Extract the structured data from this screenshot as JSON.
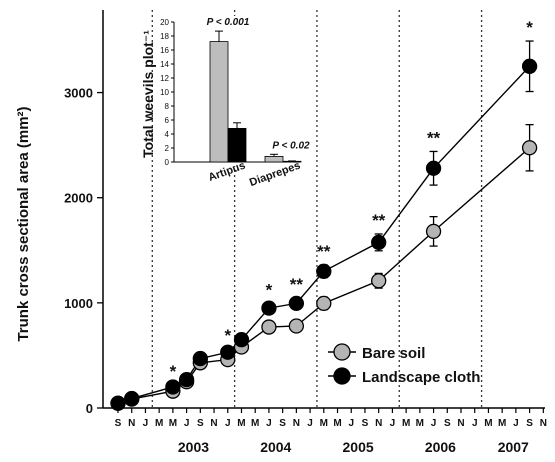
{
  "chart_data": [
    {
      "type": "line",
      "ylabel": "Trunk cross sectional area (mm²)",
      "xlabel": "",
      "ylim": [
        0,
        3500
      ],
      "y_ticks": [
        "0",
        "1000",
        "2000",
        "3000"
      ],
      "month_ticks": [
        "S",
        "N",
        "J",
        "M",
        "M",
        "J",
        "S",
        "N",
        "J",
        "M",
        "M",
        "J",
        "S",
        "N",
        "J",
        "M",
        "M",
        "J",
        "S",
        "N",
        "J",
        "M",
        "M",
        "J",
        "S",
        "N",
        "J",
        "M",
        "M",
        "J",
        "S",
        "N"
      ],
      "years": [
        "2003",
        "2004",
        "2005",
        "2006",
        "2007"
      ],
      "year_dividers_after_tick": [
        2,
        8,
        14,
        20,
        26
      ],
      "series": [
        {
          "name": "Bare soil",
          "color": "#b4b4b4",
          "points": [
            {
              "t": 0,
              "y": 45,
              "err": 0
            },
            {
              "t": 1,
              "y": 85,
              "err": 0
            },
            {
              "t": 4,
              "y": 160,
              "err": 20
            },
            {
              "t": 5,
              "y": 250,
              "err": 20
            },
            {
              "t": 6,
              "y": 430,
              "err": 25
            },
            {
              "t": 8,
              "y": 460,
              "err": 30
            },
            {
              "t": 9,
              "y": 580,
              "err": 30
            },
            {
              "t": 11,
              "y": 770,
              "err": 35
            },
            {
              "t": 13,
              "y": 780,
              "err": 40
            },
            {
              "t": 15,
              "y": 995,
              "err": 60
            },
            {
              "t": 19,
              "y": 1210,
              "err": 70
            },
            {
              "t": 23,
              "y": 1680,
              "err": 140
            },
            {
              "t": 30,
              "y": 2475,
              "err": 220
            }
          ]
        },
        {
          "name": "Landscape cloth",
          "color": "#000000",
          "points": [
            {
              "t": 0,
              "y": 45,
              "err": 0
            },
            {
              "t": 1,
              "y": 90,
              "err": 0
            },
            {
              "t": 4,
              "y": 200,
              "err": 20
            },
            {
              "t": 5,
              "y": 270,
              "err": 20
            },
            {
              "t": 6,
              "y": 470,
              "err": 25
            },
            {
              "t": 8,
              "y": 530,
              "err": 30
            },
            {
              "t": 9,
              "y": 650,
              "err": 30
            },
            {
              "t": 11,
              "y": 950,
              "err": 45
            },
            {
              "t": 13,
              "y": 995,
              "err": 50
            },
            {
              "t": 15,
              "y": 1300,
              "err": 60
            },
            {
              "t": 19,
              "y": 1575,
              "err": 80
            },
            {
              "t": 23,
              "y": 2280,
              "err": 160
            },
            {
              "t": 30,
              "y": 3250,
              "err": 240
            }
          ]
        }
      ],
      "significance": [
        {
          "t": 4,
          "label": "*"
        },
        {
          "t": 8,
          "label": "*"
        },
        {
          "t": 11,
          "label": "*"
        },
        {
          "t": 13,
          "label": "**"
        },
        {
          "t": 15,
          "label": "**"
        },
        {
          "t": 19,
          "label": "**"
        },
        {
          "t": 23,
          "label": "**"
        },
        {
          "t": 30,
          "label": "*"
        }
      ],
      "legend": {
        "placement": "bottom-right",
        "entries": [
          "Bare soil",
          "Landscape cloth"
        ]
      }
    },
    {
      "type": "bar",
      "ylabel": "Total weevils plot⁻¹",
      "ylim": [
        0,
        20
      ],
      "y_ticks": [
        "0",
        "2",
        "4",
        "6",
        "8",
        "10",
        "12",
        "14",
        "16",
        "18",
        "20"
      ],
      "categories": [
        "Artipus",
        "Diaprepes"
      ],
      "series": [
        {
          "name": "Bare soil",
          "color": "#bdbdbd",
          "values": [
            17.2,
            0.8
          ],
          "errors": [
            1.5,
            0.3
          ]
        },
        {
          "name": "Landscape cloth",
          "color": "#000000",
          "values": [
            4.8,
            0.1
          ],
          "errors": [
            0.8,
            0.05
          ]
        }
      ],
      "p_values": [
        "P < 0.001",
        "P < 0.02"
      ]
    }
  ]
}
